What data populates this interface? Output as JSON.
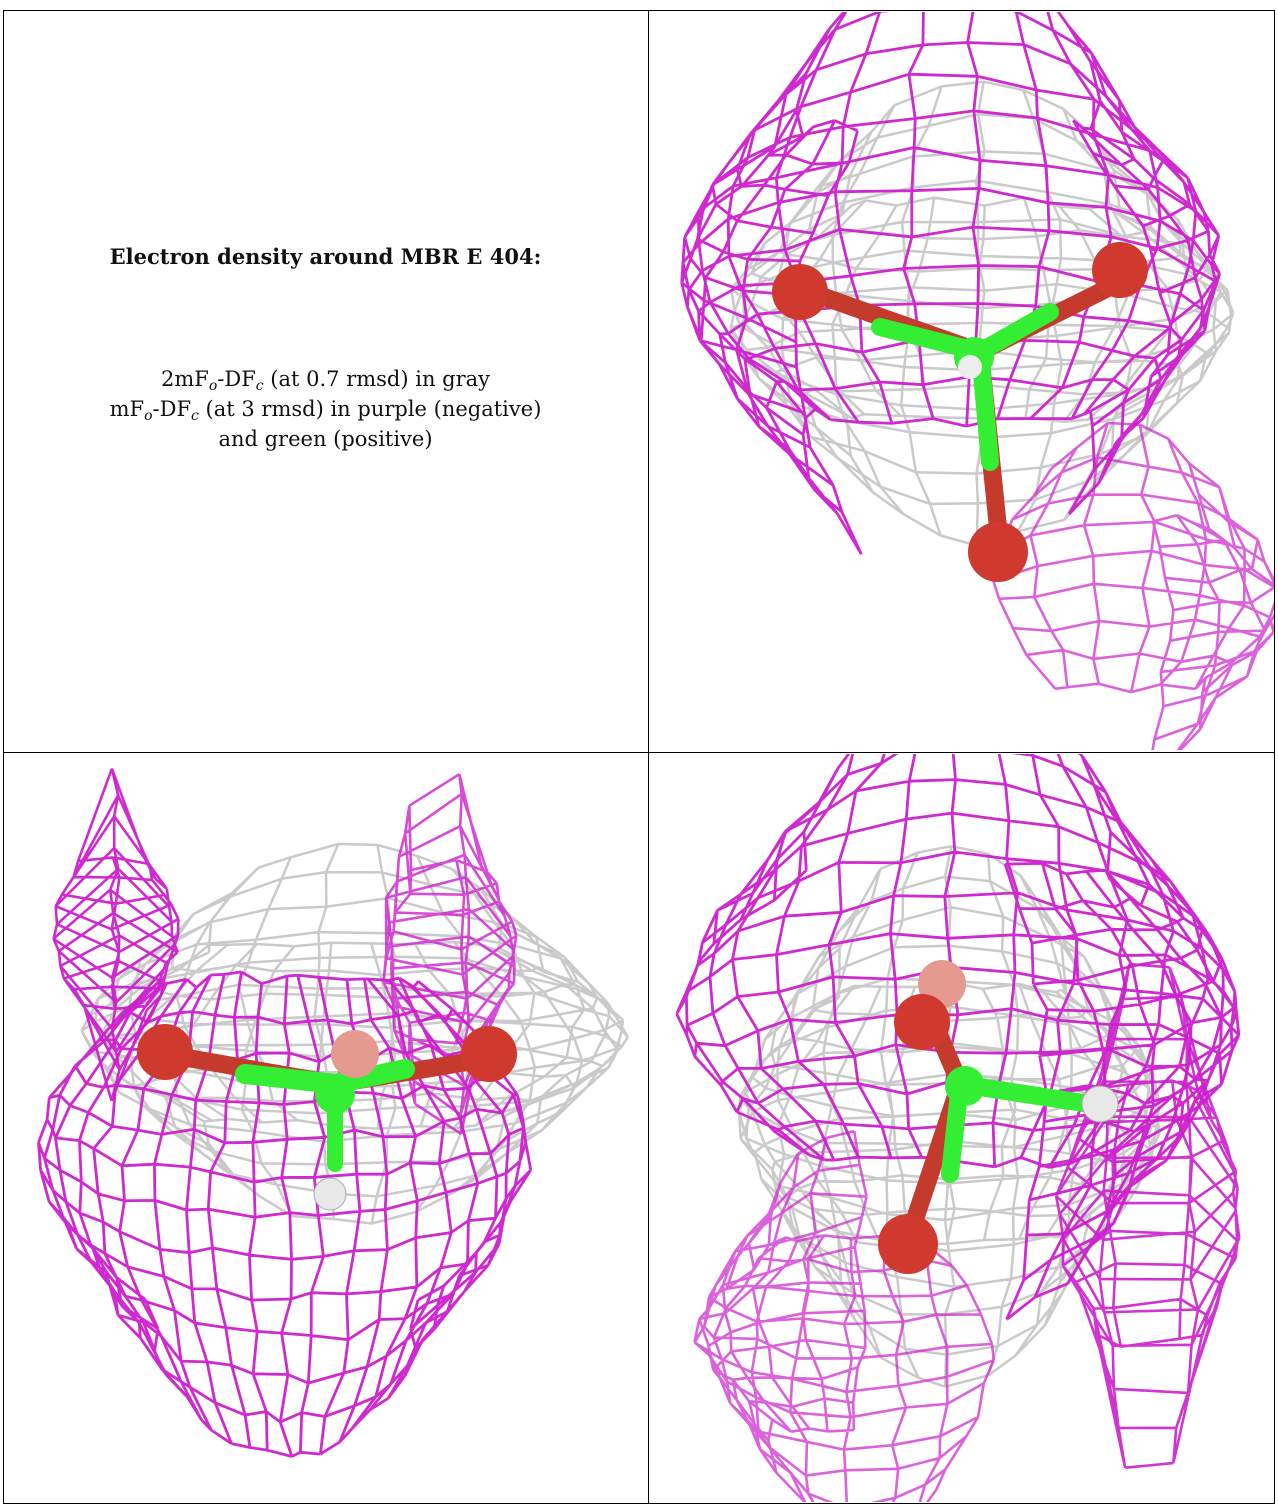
{
  "caption": {
    "title": "Electron density around MBR E 404:",
    "line1": {
      "prefix": "2mF",
      "sub1": "o",
      "mid": "-DF",
      "sub2": "c",
      "suffix": " (at 0.7 rmsd) in gray"
    },
    "line2": {
      "prefix": "mF",
      "sub1": "o",
      "mid": "-DF",
      "sub2": "c",
      "suffix": " (at 3 rmsd) in purple (negative)"
    },
    "line3": "and green (positive)"
  },
  "colors": {
    "gray_mesh": "#c4c4c4",
    "purple_mesh": "#cc1fcc",
    "green_bond": "#33ee33",
    "oxygen": "#d03a2e",
    "hydrogen": "#e8e8e8"
  },
  "panels": [
    {
      "name": "view-top-right"
    },
    {
      "name": "view-bottom-left"
    },
    {
      "name": "view-bottom-right"
    }
  ]
}
